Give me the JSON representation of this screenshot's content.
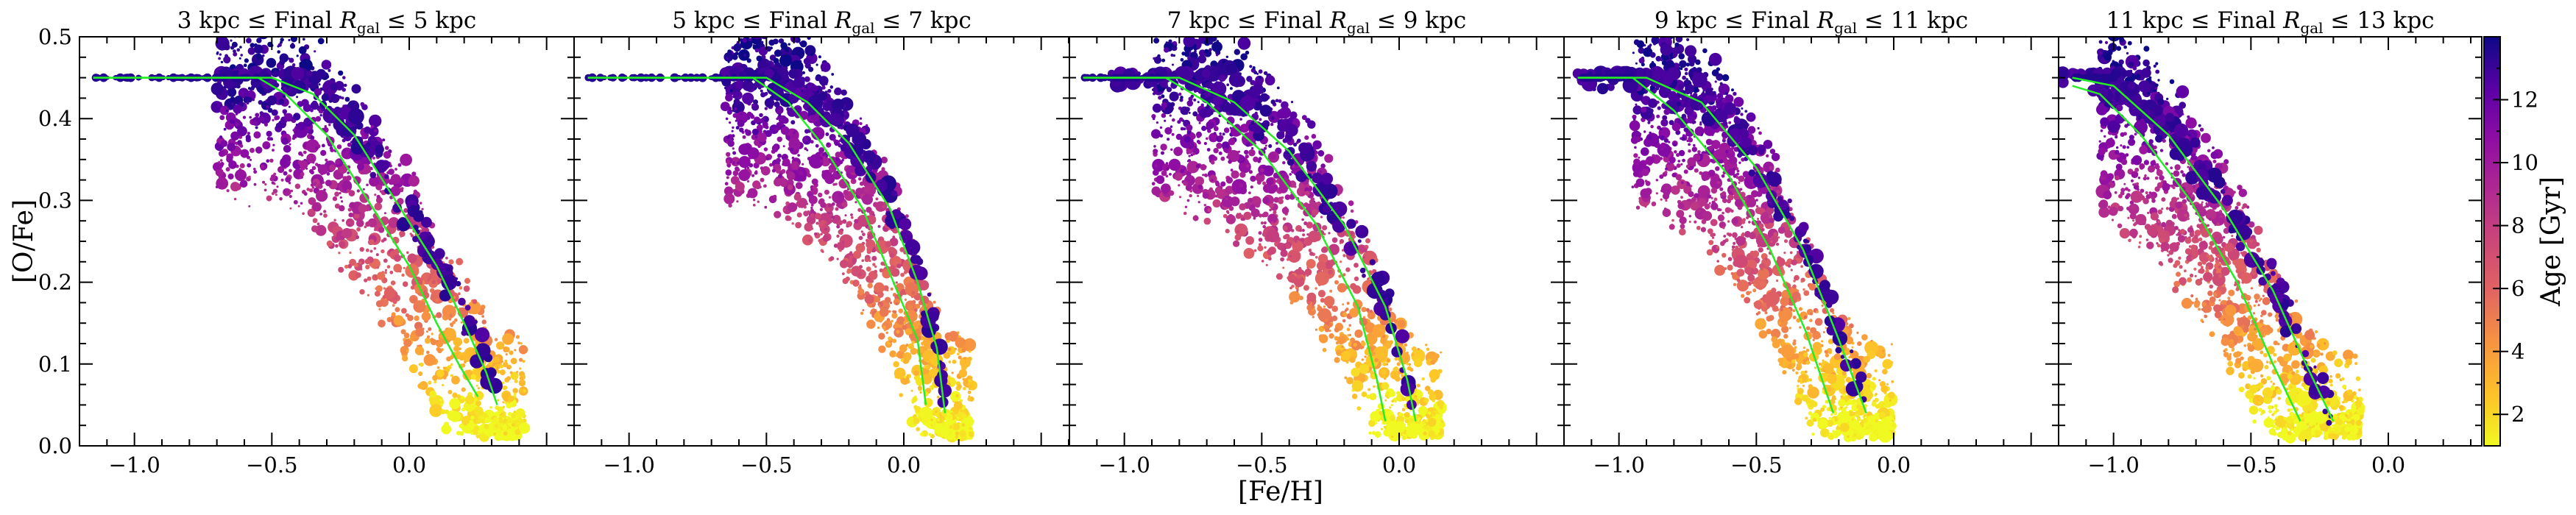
{
  "chart_data": {
    "type": "scatter",
    "xlabel": "[Fe/H]",
    "ylabel": "[O/Fe]",
    "xlim": [
      -1.2,
      0.6
    ],
    "ylim": [
      0.0,
      0.5
    ],
    "x_ticks": [
      "−1.0",
      "−0.5",
      "0.0"
    ],
    "y_ticks": [
      "0.0",
      "0.1",
      "0.2",
      "0.3",
      "0.4",
      "0.5"
    ],
    "colorbar": {
      "label": "Age [Gyr]",
      "range": [
        1,
        14
      ],
      "ticks": [
        "2",
        "4",
        "6",
        "8",
        "10",
        "12"
      ],
      "colormap": "plasma, reversed (yellow = young, dark indigo = old)"
    },
    "panels": [
      {
        "title_prefix": "3 kpc ≤ Final ",
        "title_suffix": " ≤ 5 kpc",
        "r_inner": 3,
        "r_outer": 5,
        "plateau_end": -0.6,
        "knee": -0.55,
        "track_inner": [
          [
            -1.15,
            0.45
          ],
          [
            -0.55,
            0.45
          ],
          [
            -0.45,
            0.43
          ],
          [
            -0.3,
            0.38
          ],
          [
            -0.15,
            0.3
          ],
          [
            0.0,
            0.22
          ],
          [
            0.1,
            0.15
          ],
          [
            0.18,
            0.1
          ],
          [
            0.25,
            0.06
          ]
        ],
        "track_outer": [
          [
            -1.15,
            0.45
          ],
          [
            -0.5,
            0.45
          ],
          [
            -0.35,
            0.43
          ],
          [
            -0.2,
            0.38
          ],
          [
            -0.05,
            0.3
          ],
          [
            0.1,
            0.22
          ],
          [
            0.2,
            0.15
          ],
          [
            0.28,
            0.09
          ],
          [
            0.32,
            0.05
          ]
        ],
        "spread_low": 0.0,
        "spread_high": 0.16
      },
      {
        "title_prefix": "5 kpc ≤ Final ",
        "title_suffix": " ≤ 7 kpc",
        "r_inner": 5,
        "r_outer": 7,
        "plateau_end": -0.55,
        "knee": -0.5,
        "track_inner": [
          [
            -1.15,
            0.45
          ],
          [
            -0.55,
            0.45
          ],
          [
            -0.42,
            0.42
          ],
          [
            -0.3,
            0.37
          ],
          [
            -0.15,
            0.29
          ],
          [
            -0.05,
            0.21
          ],
          [
            0.05,
            0.13
          ],
          [
            0.08,
            0.05
          ]
        ],
        "track_outer": [
          [
            -1.15,
            0.45
          ],
          [
            -0.5,
            0.45
          ],
          [
            -0.35,
            0.42
          ],
          [
            -0.2,
            0.37
          ],
          [
            -0.05,
            0.29
          ],
          [
            0.05,
            0.2
          ],
          [
            0.12,
            0.12
          ],
          [
            0.15,
            0.04
          ]
        ],
        "spread_low": 0.0,
        "spread_high": 0.16
      },
      {
        "title_prefix": "7 kpc ≤ Final ",
        "title_suffix": " ≤ 9 kpc",
        "r_inner": 7,
        "r_outer": 9,
        "plateau_end": -0.95,
        "knee": -0.75,
        "track_inner": [
          [
            -1.15,
            0.45
          ],
          [
            -0.85,
            0.45
          ],
          [
            -0.7,
            0.42
          ],
          [
            -0.5,
            0.36
          ],
          [
            -0.3,
            0.27
          ],
          [
            -0.15,
            0.17
          ],
          [
            -0.08,
            0.08
          ],
          [
            -0.05,
            0.03
          ]
        ],
        "track_outer": [
          [
            -1.15,
            0.45
          ],
          [
            -0.8,
            0.45
          ],
          [
            -0.6,
            0.42
          ],
          [
            -0.4,
            0.36
          ],
          [
            -0.2,
            0.27
          ],
          [
            -0.05,
            0.17
          ],
          [
            0.03,
            0.08
          ],
          [
            0.06,
            0.03
          ]
        ],
        "spread_low": 0.0,
        "spread_high": 0.16
      },
      {
        "title_prefix": "9 kpc ≤ Final ",
        "title_suffix": " ≤ 11 kpc",
        "r_inner": 9,
        "r_outer": 11,
        "plateau_end": -1.05,
        "knee": -0.8,
        "track_inner": [
          [
            -1.15,
            0.45
          ],
          [
            -0.95,
            0.45
          ],
          [
            -0.8,
            0.41
          ],
          [
            -0.6,
            0.33
          ],
          [
            -0.45,
            0.24
          ],
          [
            -0.32,
            0.14
          ],
          [
            -0.22,
            0.04
          ]
        ],
        "track_outer": [
          [
            -1.15,
            0.45
          ],
          [
            -0.9,
            0.45
          ],
          [
            -0.7,
            0.42
          ],
          [
            -0.5,
            0.34
          ],
          [
            -0.33,
            0.24
          ],
          [
            -0.2,
            0.13
          ],
          [
            -0.1,
            0.04
          ]
        ],
        "spread_low": 0.0,
        "spread_high": 0.15
      },
      {
        "title_prefix": "11 kpc ≤ Final ",
        "title_suffix": " ≤ 13 kpc",
        "r_inner": 11,
        "r_outer": 13,
        "plateau_end": -1.1,
        "knee": -0.9,
        "track_inner": [
          [
            -1.15,
            0.44
          ],
          [
            -1.05,
            0.43
          ],
          [
            -0.9,
            0.38
          ],
          [
            -0.72,
            0.3
          ],
          [
            -0.55,
            0.2
          ],
          [
            -0.42,
            0.1
          ],
          [
            -0.32,
            0.03
          ]
        ],
        "track_outer": [
          [
            -1.15,
            0.45
          ],
          [
            -1.0,
            0.44
          ],
          [
            -0.8,
            0.38
          ],
          [
            -0.6,
            0.29
          ],
          [
            -0.42,
            0.19
          ],
          [
            -0.3,
            0.1
          ],
          [
            -0.2,
            0.03
          ]
        ],
        "spread_low": 0.0,
        "spread_high": 0.14
      }
    ],
    "track_color": "#22ee22",
    "frame_color": "#000000"
  }
}
